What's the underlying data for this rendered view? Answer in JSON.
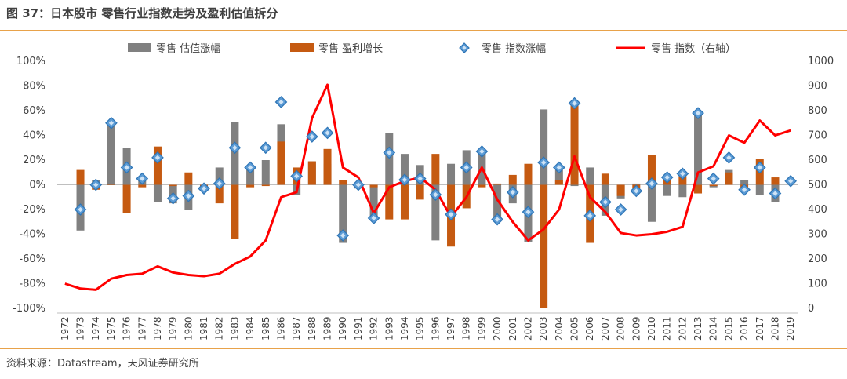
{
  "title": "图 37：日本股市 零售行业指数走势及盈利估值拆分",
  "source": "资料来源：Datastream，天风证券研究所",
  "colors": {
    "valuation": "#808080",
    "earnings": "#c55a11",
    "marker_fill": "#5b9bd5",
    "marker_stroke": "#2e75b6",
    "index_line": "#ff0000",
    "accent_rule": "#e8a24a"
  },
  "chart_data": {
    "type": "bar",
    "legend_position": "top",
    "grid": false,
    "categories": [
      "1972",
      "1973",
      "1974",
      "1975",
      "1976",
      "1977",
      "1978",
      "1979",
      "1980",
      "1981",
      "1982",
      "1983",
      "1984",
      "1985",
      "1986",
      "1987",
      "1988",
      "1989",
      "1990",
      "1991",
      "1992",
      "1993",
      "1994",
      "1995",
      "1996",
      "1997",
      "1998",
      "1999",
      "2000",
      "2001",
      "2002",
      "2003",
      "2004",
      "2005",
      "2006",
      "2007",
      "2008",
      "2009",
      "2010",
      "2011",
      "2012",
      "2013",
      "2014",
      "2015",
      "2016",
      "2017",
      "2018",
      "2019"
    ],
    "y_left": {
      "min": -100,
      "max": 100,
      "step": 20,
      "unit": "%"
    },
    "y_right": {
      "min": 0,
      "max": 1000,
      "step": 100
    },
    "series": [
      {
        "name": "零售 估值涨幅",
        "type": "bar",
        "axis": "left",
        "values": [
          null,
          -37,
          4,
          50,
          30,
          7,
          -14,
          -15,
          -20,
          -5,
          14,
          51,
          14,
          20,
          49,
          -8,
          19,
          17,
          -47,
          -3,
          -26,
          42,
          25,
          16,
          -45,
          17,
          28,
          28,
          -28,
          -15,
          -46,
          61,
          12,
          -1,
          14,
          -25,
          -11,
          1,
          -30,
          -9,
          -10,
          59,
          -2,
          12,
          4,
          -8,
          -14,
          null
        ]
      },
      {
        "name": "零售 盈利增长",
        "type": "bar",
        "axis": "left",
        "values": [
          null,
          12,
          -4,
          0,
          -23,
          -2,
          31,
          -1,
          10,
          -1,
          -15,
          -44,
          -2,
          -1,
          35,
          14,
          19,
          29,
          4,
          1,
          -2,
          -28,
          -28,
          -12,
          25,
          -50,
          -19,
          -2,
          1,
          8,
          17,
          -100,
          4,
          66,
          -47,
          9,
          -9,
          -3,
          24,
          5,
          7,
          -7,
          -1,
          10,
          -3,
          21,
          6,
          null
        ]
      },
      {
        "name": "零售 指数涨幅",
        "type": "marker",
        "axis": "left",
        "values": [
          null,
          -20,
          0,
          50,
          14,
          5,
          22,
          -11,
          -9,
          -3,
          1,
          30,
          14,
          30,
          67,
          7,
          39,
          42,
          -41,
          0,
          -27,
          26,
          4,
          5,
          -8,
          -24,
          14,
          27,
          -28,
          -6,
          -22,
          18,
          14,
          66,
          -25,
          -14,
          -20,
          -5,
          1,
          6,
          9,
          58,
          5,
          22,
          -4,
          14,
          -7,
          3
        ]
      },
      {
        "name": "零售 指数（右轴）",
        "type": "line",
        "axis": "right",
        "values": [
          100,
          80,
          75,
          120,
          135,
          140,
          170,
          145,
          135,
          130,
          140,
          180,
          210,
          275,
          450,
          470,
          770,
          905,
          570,
          530,
          385,
          490,
          515,
          530,
          480,
          370,
          450,
          570,
          440,
          350,
          275,
          320,
          400,
          615,
          450,
          390,
          305,
          295,
          300,
          310,
          330,
          550,
          575,
          700,
          670,
          760,
          700,
          720
        ],
        "note": "approximate values read from the chart"
      }
    ]
  }
}
